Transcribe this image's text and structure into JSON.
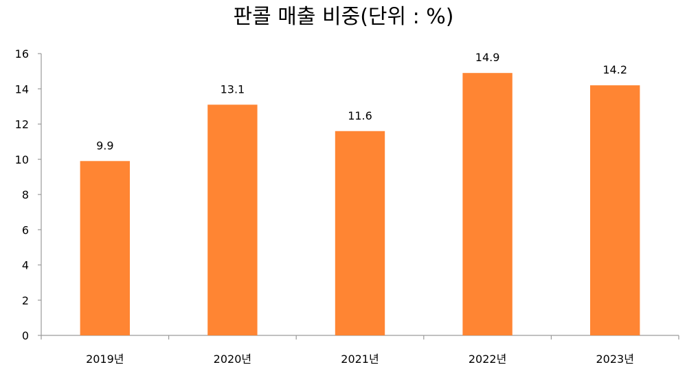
{
  "chart_data": {
    "type": "bar",
    "title": "판콜 매출 비중(단위 : %)",
    "categories": [
      "2019년",
      "2020년",
      "2021년",
      "2022년",
      "2023년"
    ],
    "values": [
      9.9,
      13.1,
      11.6,
      14.9,
      14.2
    ],
    "data_labels": [
      "9.9",
      "13.1",
      "11.6",
      "14.9",
      "14.2"
    ],
    "xlabel": "",
    "ylabel": "",
    "ylim": [
      0,
      16
    ],
    "yticks": [
      "0",
      "2",
      "4",
      "6",
      "8",
      "10",
      "12",
      "14",
      "16"
    ],
    "grid": false,
    "legend": "none",
    "bar_color": "#FF8533"
  }
}
